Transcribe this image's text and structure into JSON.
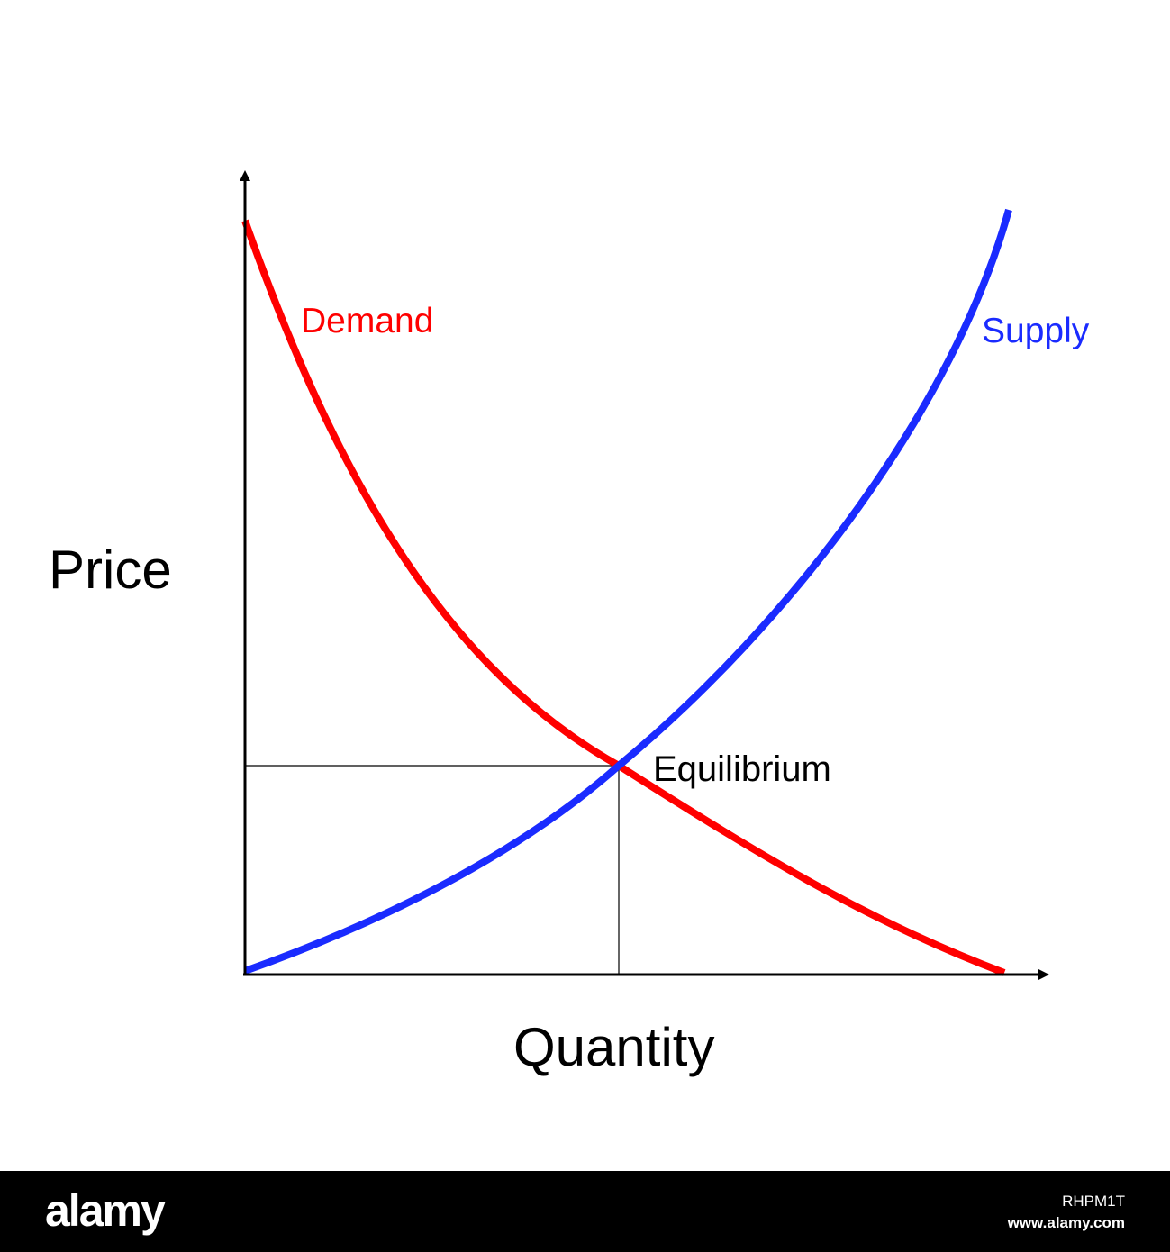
{
  "chart_data": {
    "type": "line",
    "xlabel": "Quantity",
    "ylabel": "Price",
    "curves": [
      {
        "name": "Demand",
        "color": "#ff0000"
      },
      {
        "name": "Supply",
        "color": "#1a2bff"
      }
    ],
    "annotations": [
      "Equilibrium"
    ],
    "grid": false,
    "axis_color": "#000000"
  },
  "watermark": {
    "logo": "alamy",
    "image_id": "RHPM1T",
    "site": "www.alamy.com"
  }
}
